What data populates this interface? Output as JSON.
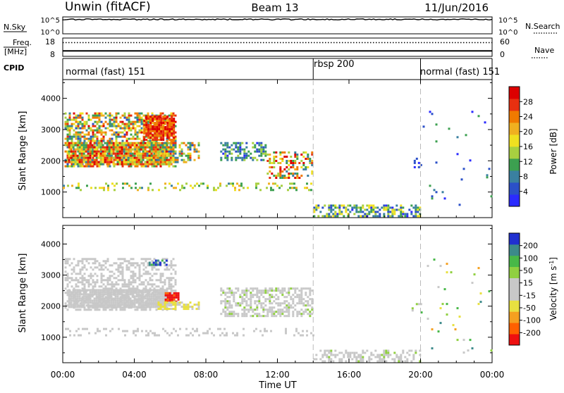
{
  "chart_data": {
    "type": "heatmap",
    "header": {
      "station": "Unwin (fitACF)",
      "beam": "Beam 13",
      "date": "11/Jun/2016"
    },
    "xlabel": "Time UT",
    "x_ticks": [
      "00:00",
      "04:00",
      "08:00",
      "12:00",
      "16:00",
      "20:00",
      "00:00"
    ],
    "x_range_hours": [
      0,
      24
    ],
    "mode_boundaries_hours": [
      14.0,
      20.0
    ],
    "strips": {
      "nsky": {
        "label": "N.Sky",
        "ticks": [
          "10^5",
          "10^0"
        ],
        "right_label": "N.Search",
        "right_ticks": [
          "10^5",
          "10^0"
        ],
        "level": 0.85
      },
      "freq": {
        "label_lines": [
          "Freq.",
          "[MHz]"
        ],
        "ticks": [
          "18",
          "8"
        ],
        "right_label": "Nave",
        "right_ticks": [
          "60",
          "0"
        ],
        "freq_level_mhz": 11,
        "nave_level": 15
      },
      "cpid": {
        "label": "CPID",
        "segments": [
          {
            "label": "normal (fast) 151",
            "start_h": 0,
            "end_h": 14
          },
          {
            "label": "rbsp 200",
            "start_h": 14,
            "end_h": 20
          },
          {
            "label": "normal (fast) 151",
            "start_h": 20,
            "end_h": 24
          }
        ]
      }
    },
    "ylabel": "Slant Range [km]",
    "y_ticks": [
      1000,
      2000,
      3000,
      4000
    ],
    "ylim": [
      180,
      4600
    ],
    "power": {
      "colorbar_label": "Power [dB]",
      "colorbar_ticks": [
        4,
        8,
        12,
        16,
        20,
        24,
        28
      ],
      "colors": [
        "#2b2bff",
        "#2b50c8",
        "#3a80a0",
        "#3ca050",
        "#a8d040",
        "#f0e020",
        "#f0b020",
        "#f07a00",
        "#e83010",
        "#dd0000"
      ],
      "range": [
        0,
        30
      ],
      "clusters": [
        {
          "t0": 0.1,
          "t1": 6.3,
          "r0": 1850,
          "r1": 3550,
          "dens": 0.62,
          "vmin": 5,
          "vmax": 28
        },
        {
          "t0": 0.3,
          "t1": 6.0,
          "r0": 1900,
          "r1": 2600,
          "dens": 0.88,
          "vmin": 8,
          "vmax": 30
        },
        {
          "t0": 4.5,
          "t1": 6.2,
          "r0": 2700,
          "r1": 3450,
          "dens": 0.85,
          "vmin": 20,
          "vmax": 30
        },
        {
          "t0": 5.3,
          "t1": 7.6,
          "r0": 1950,
          "r1": 2600,
          "dens": 0.45,
          "vmin": 4,
          "vmax": 26
        },
        {
          "t0": 8.8,
          "t1": 11.3,
          "r0": 2000,
          "r1": 2600,
          "dens": 0.55,
          "vmin": 2,
          "vmax": 14
        },
        {
          "t0": 11.4,
          "t1": 14.0,
          "r0": 1450,
          "r1": 2300,
          "dens": 0.4,
          "vmin": 6,
          "vmax": 30
        },
        {
          "t0": 0.0,
          "t1": 14.0,
          "r0": 1050,
          "r1": 1300,
          "dens": 0.22,
          "vmin": 8,
          "vmax": 20
        },
        {
          "t0": 14.0,
          "t1": 20.0,
          "r0": 200,
          "r1": 600,
          "dens": 0.5,
          "vmin": 2,
          "vmax": 18
        },
        {
          "t0": 19.5,
          "t1": 20.0,
          "r0": 1800,
          "r1": 2100,
          "dens": 0.35,
          "vmin": 1,
          "vmax": 6
        },
        {
          "t0": 20.0,
          "t1": 24.0,
          "r0": 500,
          "r1": 3600,
          "dens": 0.02,
          "vmin": 2,
          "vmax": 12
        }
      ]
    },
    "velocity": {
      "colorbar_label": "Velocity [m s^-1]",
      "colorbar_ticks": [
        "200",
        "100",
        "50",
        "15",
        "-15",
        "-50",
        "-100",
        "-200"
      ],
      "colors": [
        "#ee1010",
        "#ff6000",
        "#f5a020",
        "#e8e040",
        "#c8c8c8",
        "#c8c8c8",
        "#90d040",
        "#48b848",
        "#3c8a8a",
        "#2030d0"
      ],
      "range": [
        -250,
        250
      ],
      "clusters": [
        {
          "t0": 0.1,
          "t1": 6.3,
          "r0": 1850,
          "r1": 3550,
          "dens": 0.5,
          "vmin": -20,
          "vmax": 40
        },
        {
          "t0": 0.3,
          "t1": 5.8,
          "r0": 2000,
          "r1": 2550,
          "dens": 0.9,
          "vmin": -10,
          "vmax": 10
        },
        {
          "t0": 5.7,
          "t1": 6.5,
          "r0": 2150,
          "r1": 2450,
          "dens": 0.9,
          "vmin": -240,
          "vmax": -180
        },
        {
          "t0": 5.3,
          "t1": 7.6,
          "r0": 1900,
          "r1": 2150,
          "dens": 0.6,
          "vmin": -90,
          "vmax": -40
        },
        {
          "t0": 4.8,
          "t1": 5.8,
          "r0": 3300,
          "r1": 3500,
          "dens": 0.6,
          "vmin": 120,
          "vmax": 240
        },
        {
          "t0": 8.8,
          "t1": 14.0,
          "r0": 1650,
          "r1": 2600,
          "dens": 0.55,
          "vmin": -15,
          "vmax": 60
        },
        {
          "t0": 0.0,
          "t1": 14.0,
          "r0": 1050,
          "r1": 1300,
          "dens": 0.22,
          "vmin": -20,
          "vmax": 40
        },
        {
          "t0": 14.0,
          "t1": 20.0,
          "r0": 200,
          "r1": 600,
          "dens": 0.45,
          "vmin": -40,
          "vmax": 60
        },
        {
          "t0": 19.5,
          "t1": 20.0,
          "r0": 1800,
          "r1": 2100,
          "dens": 0.3,
          "vmin": 30,
          "vmax": 70
        },
        {
          "t0": 20.0,
          "t1": 24.0,
          "r0": 500,
          "r1": 3600,
          "dens": 0.02,
          "vmin": -150,
          "vmax": 200
        }
      ]
    }
  }
}
